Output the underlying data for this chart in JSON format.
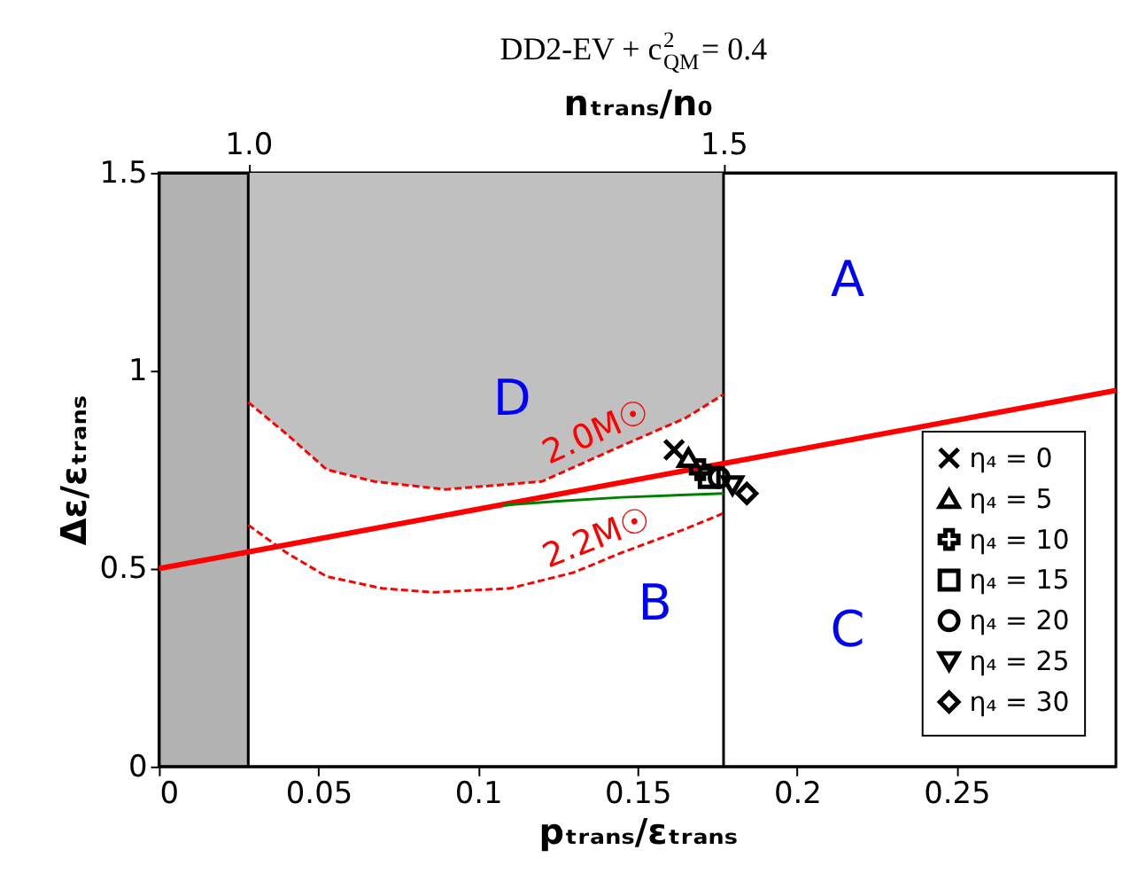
{
  "chart_data": {
    "type": "line",
    "title": "DD2-EV + c$_{QM}$$^{2}$ = 0.4",
    "xlabel": "pₜᵣₐₙₛ/εₜᵣₐₙₛ",
    "ylabel": "Δε/εₜᵣₐₙₛ",
    "x2label": "nₜᵣₐₙₛ/n₀",
    "xlim": [
      0,
      0.3
    ],
    "xticks": [
      0,
      0.05,
      0.1,
      0.15,
      0.2,
      0.25
    ],
    "ylim": [
      0,
      1.5
    ],
    "yticks": [
      0,
      0.5,
      1,
      1.5
    ],
    "x2lim": [
      0.906,
      1.913
    ],
    "x2ticks": [
      {
        "value": 1,
        "label": "1.0"
      },
      {
        "value": 1.5,
        "label": "1.5"
      }
    ],
    "grid": false,
    "legend": "bottom right",
    "series": [
      {
        "name": "2.0M☉",
        "color": "#ff0000",
        "line_style": "dashed",
        "x": [
          0.028,
          0.04,
          0.0526,
          0.0675,
          0.0897,
          0.12,
          0.145,
          0.165,
          0.177
        ],
        "values": [
          0.92,
          0.84,
          0.75,
          0.72,
          0.7,
          0.72,
          0.81,
          0.88,
          0.94
        ],
        "lower": [
          0.92,
          0.84,
          0.75,
          0.72,
          0.7,
          0.72,
          0.81,
          0.88,
          0.94
        ],
        "upper": [
          1.5,
          1.5,
          1.5,
          1.5,
          1.5,
          1.5,
          1.5,
          1.5,
          1.5
        ]
      },
      {
        "name": "2.2M☉",
        "color": "#ff0000",
        "line_style": "dashed",
        "x": [
          0.028,
          0.04,
          0.0526,
          0.07,
          0.086,
          0.11,
          0.13,
          0.145,
          0.165,
          0.177
        ],
        "values": [
          0.61,
          0.54,
          0.48,
          0.45,
          0.44,
          0.45,
          0.49,
          0.54,
          0.6,
          0.64
        ]
      },
      {
        "color": "#ff0000",
        "line_style": "solid",
        "x": [
          0,
          0.3
        ],
        "values": [
          0.5,
          0.95
        ]
      },
      {
        "color": "#008000",
        "line_style": "solid",
        "x": [
          0.108,
          0.125,
          0.145,
          0.177
        ],
        "values": [
          0.66,
          0.67,
          0.68,
          0.69
        ]
      },
      {
        "type": "scatter",
        "name": "η₄ = 0",
        "marker": "cross",
        "color": "#000000",
        "x": [
          0.1615
        ],
        "values": [
          0.8
        ]
      },
      {
        "type": "scatter",
        "name": "η₄ = 5",
        "marker": "triangle",
        "color": "#000000",
        "x": [
          0.166
        ],
        "values": [
          0.78
        ]
      },
      {
        "type": "scatter",
        "name": "η₄ = 10",
        "marker": "plus",
        "color": "#000000",
        "x": [
          0.1697
        ],
        "values": [
          0.75
        ]
      },
      {
        "type": "scatter",
        "name": "η₄ = 15",
        "marker": "square",
        "color": "#000000",
        "x": [
          0.1725
        ],
        "values": [
          0.73
        ]
      },
      {
        "type": "scatter",
        "name": "η₄ = 20",
        "marker": "circle",
        "color": "#000000",
        "x": [
          0.1756
        ],
        "values": [
          0.73
        ]
      },
      {
        "type": "scatter",
        "name": "η₄ = 25",
        "marker": "triangle_down",
        "color": "#000000",
        "x": [
          0.1798
        ],
        "values": [
          0.71
        ]
      },
      {
        "type": "scatter",
        "name": "η₄ = 30",
        "marker": "diamond",
        "color": "#000000",
        "x": [
          0.1843
        ],
        "values": [
          0.69
        ]
      }
    ],
    "ref_lines": [
      {
        "axis": "x",
        "value": 0.028,
        "color": "#000000"
      },
      {
        "axis": "x",
        "value": 0.177,
        "color": "#000000"
      }
    ],
    "bands": [
      {
        "axis": "x",
        "from": 0,
        "to": 0.028,
        "color": "#000000"
      }
    ],
    "annotations": [
      "A",
      "B",
      "C",
      "D"
    ]
  }
}
